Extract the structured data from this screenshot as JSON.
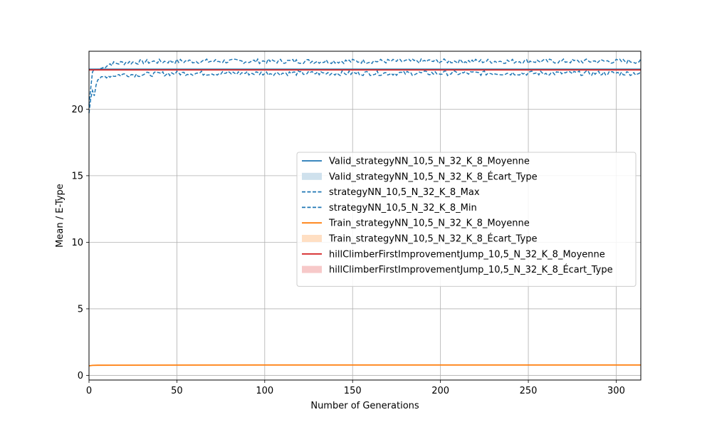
{
  "chart_data": {
    "type": "line",
    "title": "",
    "xlabel": "Number of Generations",
    "ylabel": "Mean / E-Type",
    "xlim": [
      0,
      314
    ],
    "ylim": [
      -0.35,
      24.35
    ],
    "xticks": [
      0,
      50,
      100,
      150,
      200,
      250,
      300
    ],
    "yticks": [
      0,
      5,
      10,
      15,
      20
    ],
    "grid": true,
    "legend_position": "center-right",
    "colors": {
      "blue": "#1f77b4",
      "orange": "#ff7f0e",
      "red": "#d62728",
      "blue_fill": "#cfe1ed",
      "orange_fill": "#ffdfc3",
      "red_fill": "#f7c9c9",
      "grid": "#b0b0b0"
    },
    "series": [
      {
        "name": "Valid_strategyNN_10,5_N_32_K_8_Moyenne",
        "style": "solid",
        "color_key": "blue",
        "x": [
          0,
          314
        ],
        "y": [
          23.0,
          23.0
        ]
      },
      {
        "name": "Valid_strategyNN_10,5_N_32_K_8_Écart_Type",
        "style": "fill",
        "color_key": "blue_fill"
      },
      {
        "name": "strategyNN_10,5_N_32_K_8_Max",
        "style": "dashed",
        "color_key": "blue",
        "x": [
          0,
          1,
          2,
          3,
          5,
          8,
          10,
          12,
          20,
          30,
          50,
          100,
          150,
          200,
          250,
          300,
          314
        ],
        "y": [
          20.3,
          21.6,
          22.8,
          23.0,
          23.0,
          23.1,
          23.3,
          23.4,
          23.5,
          23.55,
          23.6,
          23.6,
          23.6,
          23.6,
          23.6,
          23.6,
          23.6
        ]
      },
      {
        "name": "strategyNN_10,5_N_32_K_8_Min",
        "style": "dashed",
        "color_key": "blue",
        "x": [
          0,
          1,
          2,
          3,
          4,
          5,
          8,
          10,
          20,
          30,
          50,
          100,
          150,
          200,
          250,
          300,
          314
        ],
        "y": [
          19.7,
          20.8,
          21.4,
          21.0,
          21.8,
          22.2,
          22.4,
          22.5,
          22.6,
          22.6,
          22.7,
          22.7,
          22.7,
          22.7,
          22.7,
          22.7,
          22.7
        ]
      },
      {
        "name": "Train_strategyNN_10,5_N_32_K_8_Moyenne",
        "style": "solid",
        "color_key": "orange",
        "x": [
          0,
          2,
          5,
          20,
          100,
          200,
          314
        ],
        "y": [
          0.72,
          0.75,
          0.76,
          0.77,
          0.78,
          0.78,
          0.78
        ]
      },
      {
        "name": "Train_strategyNN_10,5_N_32_K_8_Écart_Type",
        "style": "fill",
        "color_key": "orange_fill"
      },
      {
        "name": "hillClimberFirstImprovementJump_10,5_N_32_K_8_Moyenne",
        "style": "solid",
        "color_key": "red",
        "x": [
          0,
          314
        ],
        "y": [
          22.95,
          22.95
        ]
      },
      {
        "name": "hillClimberFirstImprovementJump_10,5_N_32_K_8_Écart_Type",
        "style": "fill",
        "color_key": "red_fill"
      }
    ]
  }
}
